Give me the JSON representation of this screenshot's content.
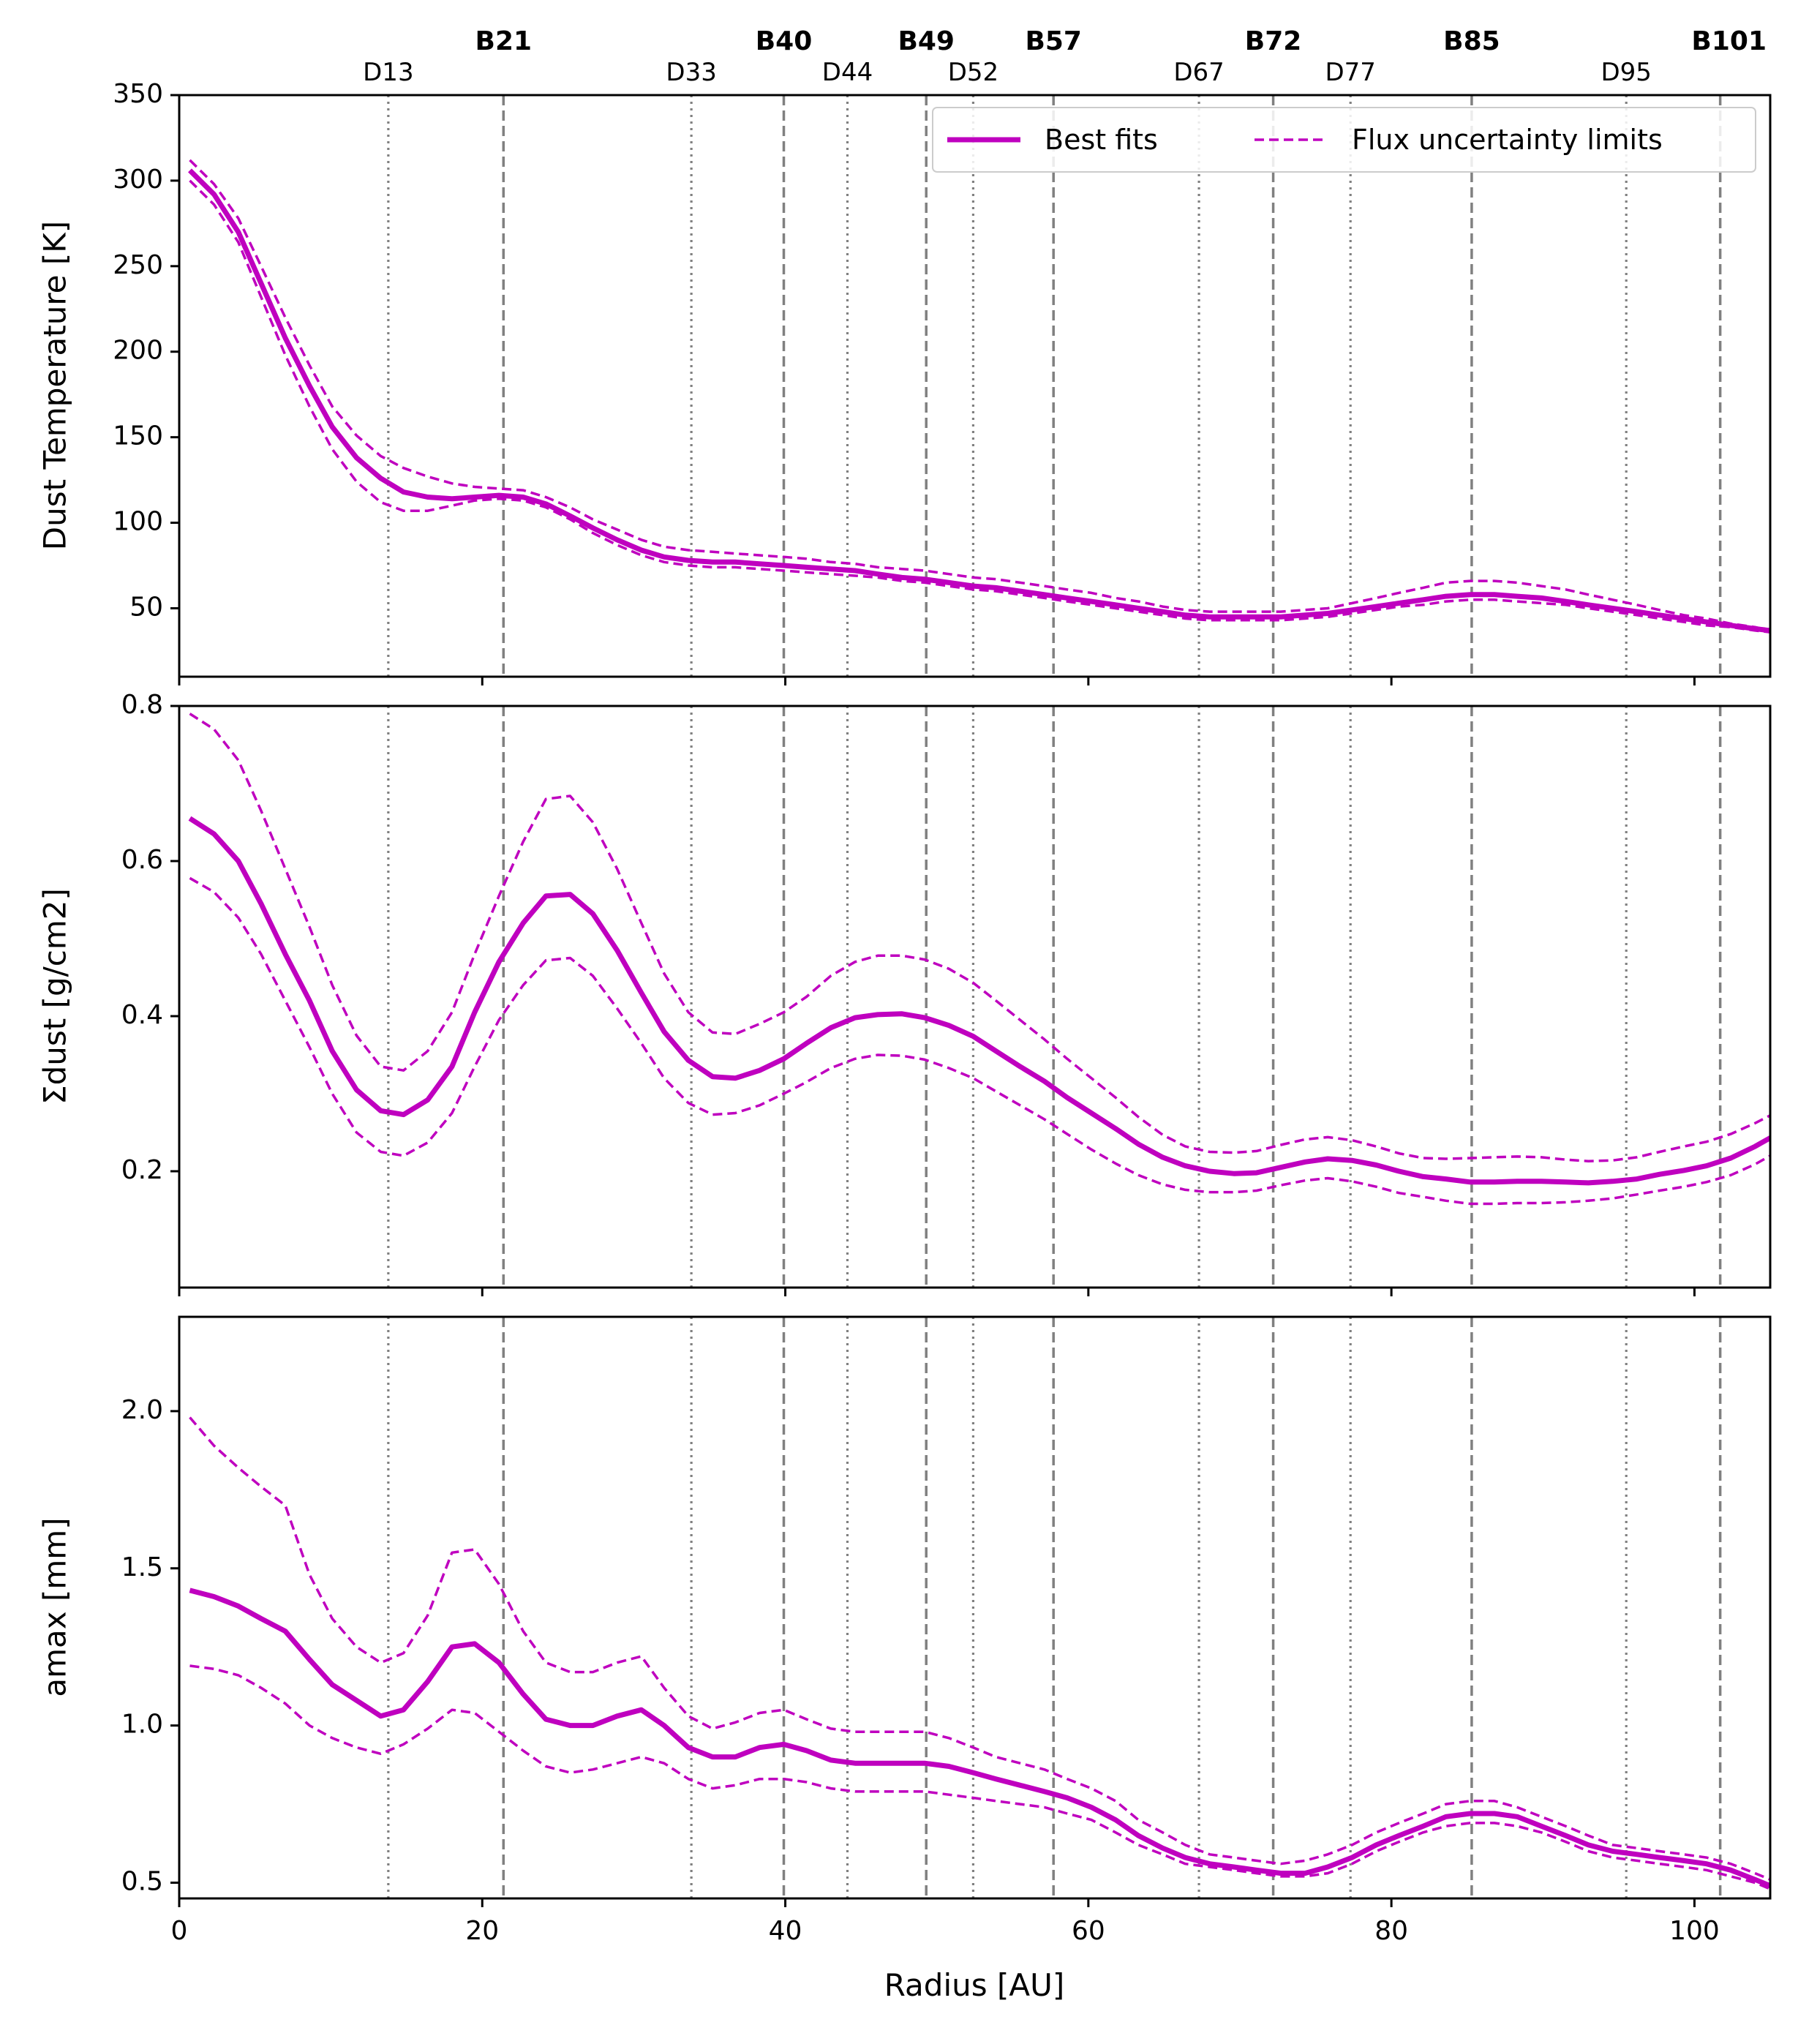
{
  "chart_data": {
    "type": "line",
    "xlabel": "Radius [AU]",
    "xlim": [
      0,
      105
    ],
    "xticks": [
      0,
      20,
      40,
      60,
      80,
      100
    ],
    "x": [
      0.7,
      2.3,
      3.9,
      5.4,
      7.0,
      8.6,
      10.1,
      11.7,
      13.3,
      14.8,
      16.4,
      18.0,
      19.5,
      21.1,
      22.7,
      24.2,
      25.8,
      27.3,
      28.9,
      30.5,
      32.0,
      33.6,
      35.2,
      36.7,
      38.3,
      39.9,
      41.4,
      43.0,
      44.6,
      46.1,
      47.7,
      49.2,
      50.8,
      52.4,
      53.9,
      55.5,
      57.1,
      58.6,
      60.2,
      61.8,
      63.3,
      64.9,
      66.4,
      68.0,
      69.6,
      71.1,
      72.7,
      74.3,
      75.8,
      77.4,
      79.0,
      80.5,
      82.1,
      83.6,
      85.2,
      86.8,
      88.3,
      89.9,
      91.5,
      93.0,
      94.6,
      96.2,
      97.7,
      99.3,
      100.8,
      102.4,
      104.0,
      105.0
    ],
    "ring_markers": [
      {
        "label": "D13",
        "r": 13.8,
        "type": "dark"
      },
      {
        "label": "B21",
        "r": 21.4,
        "type": "bright"
      },
      {
        "label": "D33",
        "r": 33.8,
        "type": "dark"
      },
      {
        "label": "B40",
        "r": 39.9,
        "type": "bright"
      },
      {
        "label": "D44",
        "r": 44.1,
        "type": "dark"
      },
      {
        "label": "B49",
        "r": 49.3,
        "type": "bright"
      },
      {
        "label": "D52",
        "r": 52.4,
        "type": "dark"
      },
      {
        "label": "B57",
        "r": 57.7,
        "type": "bright"
      },
      {
        "label": "D67",
        "r": 67.3,
        "type": "dark"
      },
      {
        "label": "B72",
        "r": 72.2,
        "type": "bright"
      },
      {
        "label": "D77",
        "r": 77.3,
        "type": "dark"
      },
      {
        "label": "B85",
        "r": 85.3,
        "type": "bright"
      },
      {
        "label": "D95",
        "r": 95.5,
        "type": "dark"
      },
      {
        "label": "B101",
        "r": 101.7,
        "type": "bright"
      }
    ],
    "legend": {
      "location": "top-right",
      "entries": [
        {
          "label": "Best fits",
          "style": "solid"
        },
        {
          "label": "Flux uncertainty limits",
          "style": "dashed"
        }
      ]
    },
    "colors": {
      "series": "#BF00BF",
      "marker_lines": "#808080"
    },
    "panels": [
      {
        "ylabel": "Dust Temperature [K]",
        "ylim": [
          10,
          350
        ],
        "yticks": [
          50,
          100,
          150,
          200,
          250,
          300,
          350
        ],
        "series": [
          {
            "name": "Best fits",
            "values": [
              306,
              292,
              270,
              240,
              208,
              180,
              156,
              138,
              126,
              118,
              115,
              114,
              115,
              116,
              115,
              111,
              104,
              97,
              90,
              84,
              80,
              78,
              77,
              77,
              76,
              75,
              74,
              73,
              72,
              70,
              68,
              67,
              65,
              63,
              62,
              60,
              58,
              56,
              54,
              52,
              50,
              48,
              46,
              45,
              45,
              45,
              45,
              46,
              47,
              49,
              51,
              53,
              55,
              57,
              58,
              58,
              57,
              56,
              54,
              52,
              50,
              48,
              46,
              44,
              42,
              40,
              38,
              37
            ]
          },
          {
            "name": "Upper limit",
            "values": [
              312,
              298,
              278,
              250,
              220,
              192,
              168,
              151,
              139,
              132,
              127,
              123,
              121,
              120,
              119,
              115,
              109,
              102,
              96,
              90,
              86,
              84,
              83,
              82,
              81,
              80,
              79,
              77,
              76,
              74,
              73,
              72,
              70,
              68,
              67,
              65,
              63,
              61,
              59,
              56,
              54,
              51,
              49,
              48,
              48,
              48,
              48,
              49,
              50,
              53,
              56,
              59,
              62,
              65,
              66,
              66,
              65,
              63,
              61,
              58,
              55,
              52,
              49,
              46,
              44,
              41,
              39,
              37
            ]
          },
          {
            "name": "Lower limit",
            "values": [
              300,
              286,
              264,
              232,
              198,
              168,
              143,
              124,
              112,
              107,
              107,
              110,
              113,
              114,
              113,
              109,
              102,
              94,
              87,
              81,
              77,
              75,
              74,
              74,
              73,
              72,
              71,
              70,
              69,
              68,
              66,
              65,
              63,
              61,
              60,
              58,
              56,
              54,
              52,
              50,
              48,
              46,
              44,
              43,
              43,
              43,
              43,
              44,
              45,
              47,
              49,
              51,
              52,
              54,
              55,
              55,
              54,
              53,
              52,
              50,
              48,
              46,
              44,
              42,
              40,
              39,
              37,
              36
            ]
          }
        ]
      },
      {
        "ylabel": "Σdust [g/cm2]",
        "ylim": [
          0.05,
          0.8
        ],
        "yticks": [
          0.2,
          0.4,
          0.6,
          0.8
        ],
        "series": [
          {
            "name": "Best fits",
            "values": [
              0.655,
              0.635,
              0.6,
              0.545,
              0.48,
              0.42,
              0.355,
              0.305,
              0.278,
              0.273,
              0.292,
              0.335,
              0.405,
              0.47,
              0.52,
              0.555,
              0.557,
              0.532,
              0.485,
              0.43,
              0.38,
              0.343,
              0.322,
              0.32,
              0.33,
              0.345,
              0.365,
              0.385,
              0.398,
              0.402,
              0.403,
              0.398,
              0.388,
              0.374,
              0.355,
              0.335,
              0.316,
              0.295,
              0.275,
              0.255,
              0.235,
              0.218,
              0.207,
              0.2,
              0.197,
              0.198,
              0.205,
              0.212,
              0.216,
              0.214,
              0.208,
              0.2,
              0.193,
              0.19,
              0.186,
              0.186,
              0.187,
              0.187,
              0.186,
              0.185,
              0.187,
              0.19,
              0.196,
              0.201,
              0.207,
              0.217,
              0.232,
              0.243
            ]
          },
          {
            "name": "Upper limit",
            "values": [
              0.79,
              0.77,
              0.73,
              0.665,
              0.59,
              0.515,
              0.44,
              0.375,
              0.335,
              0.33,
              0.355,
              0.405,
              0.48,
              0.555,
              0.625,
              0.68,
              0.684,
              0.65,
              0.59,
              0.52,
              0.455,
              0.405,
              0.379,
              0.377,
              0.39,
              0.405,
              0.425,
              0.452,
              0.47,
              0.478,
              0.478,
              0.473,
              0.461,
              0.443,
              0.42,
              0.395,
              0.37,
              0.345,
              0.32,
              0.295,
              0.27,
              0.247,
              0.232,
              0.225,
              0.224,
              0.226,
              0.234,
              0.241,
              0.244,
              0.24,
              0.232,
              0.223,
              0.217,
              0.216,
              0.217,
              0.218,
              0.219,
              0.218,
              0.215,
              0.213,
              0.214,
              0.218,
              0.225,
              0.232,
              0.238,
              0.248,
              0.262,
              0.272
            ]
          },
          {
            "name": "Lower limit",
            "values": [
              0.578,
              0.56,
              0.527,
              0.48,
              0.42,
              0.36,
              0.3,
              0.25,
              0.225,
              0.22,
              0.237,
              0.275,
              0.335,
              0.395,
              0.44,
              0.472,
              0.475,
              0.452,
              0.41,
              0.365,
              0.32,
              0.288,
              0.273,
              0.275,
              0.285,
              0.3,
              0.315,
              0.333,
              0.345,
              0.35,
              0.349,
              0.344,
              0.333,
              0.32,
              0.303,
              0.285,
              0.267,
              0.248,
              0.228,
              0.21,
              0.195,
              0.183,
              0.176,
              0.173,
              0.173,
              0.175,
              0.182,
              0.188,
              0.191,
              0.187,
              0.18,
              0.172,
              0.167,
              0.162,
              0.158,
              0.158,
              0.159,
              0.159,
              0.16,
              0.162,
              0.165,
              0.17,
              0.175,
              0.18,
              0.186,
              0.195,
              0.209,
              0.22
            ]
          }
        ]
      },
      {
        "ylabel": "amax [mm]",
        "ylim": [
          0.45,
          2.3
        ],
        "yticks": [
          0.5,
          1.0,
          1.5,
          2.0
        ],
        "series": [
          {
            "name": "Best fits",
            "values": [
              1.43,
              1.41,
              1.38,
              1.34,
              1.3,
              1.21,
              1.13,
              1.08,
              1.03,
              1.05,
              1.14,
              1.25,
              1.26,
              1.2,
              1.1,
              1.02,
              1.0,
              1.0,
              1.03,
              1.05,
              1.0,
              0.93,
              0.9,
              0.9,
              0.93,
              0.94,
              0.92,
              0.89,
              0.88,
              0.88,
              0.88,
              0.88,
              0.87,
              0.85,
              0.83,
              0.81,
              0.79,
              0.77,
              0.74,
              0.7,
              0.65,
              0.61,
              0.58,
              0.56,
              0.55,
              0.54,
              0.53,
              0.53,
              0.55,
              0.58,
              0.62,
              0.65,
              0.68,
              0.71,
              0.72,
              0.72,
              0.71,
              0.68,
              0.65,
              0.62,
              0.6,
              0.59,
              0.58,
              0.57,
              0.56,
              0.54,
              0.51,
              0.49
            ]
          },
          {
            "name": "Upper limit",
            "values": [
              1.98,
              1.89,
              1.82,
              1.76,
              1.7,
              1.48,
              1.34,
              1.25,
              1.2,
              1.23,
              1.35,
              1.55,
              1.56,
              1.45,
              1.3,
              1.2,
              1.17,
              1.17,
              1.2,
              1.22,
              1.12,
              1.03,
              0.99,
              1.01,
              1.04,
              1.05,
              1.02,
              0.99,
              0.98,
              0.98,
              0.98,
              0.98,
              0.96,
              0.93,
              0.9,
              0.88,
              0.86,
              0.83,
              0.8,
              0.76,
              0.7,
              0.66,
              0.62,
              0.59,
              0.58,
              0.57,
              0.56,
              0.57,
              0.59,
              0.62,
              0.66,
              0.69,
              0.72,
              0.75,
              0.76,
              0.76,
              0.74,
              0.71,
              0.68,
              0.65,
              0.62,
              0.61,
              0.6,
              0.59,
              0.58,
              0.56,
              0.53,
              0.51
            ]
          },
          {
            "name": "Lower limit",
            "values": [
              1.19,
              1.18,
              1.16,
              1.12,
              1.07,
              1.0,
              0.96,
              0.93,
              0.91,
              0.94,
              0.99,
              1.05,
              1.04,
              0.98,
              0.92,
              0.87,
              0.85,
              0.86,
              0.88,
              0.9,
              0.88,
              0.83,
              0.8,
              0.81,
              0.83,
              0.83,
              0.82,
              0.8,
              0.79,
              0.79,
              0.79,
              0.79,
              0.78,
              0.77,
              0.76,
              0.75,
              0.74,
              0.72,
              0.7,
              0.66,
              0.62,
              0.59,
              0.56,
              0.55,
              0.54,
              0.53,
              0.52,
              0.52,
              0.53,
              0.56,
              0.6,
              0.63,
              0.66,
              0.68,
              0.69,
              0.69,
              0.68,
              0.66,
              0.63,
              0.6,
              0.58,
              0.57,
              0.56,
              0.55,
              0.54,
              0.52,
              0.5,
              0.48
            ]
          }
        ]
      }
    ]
  }
}
